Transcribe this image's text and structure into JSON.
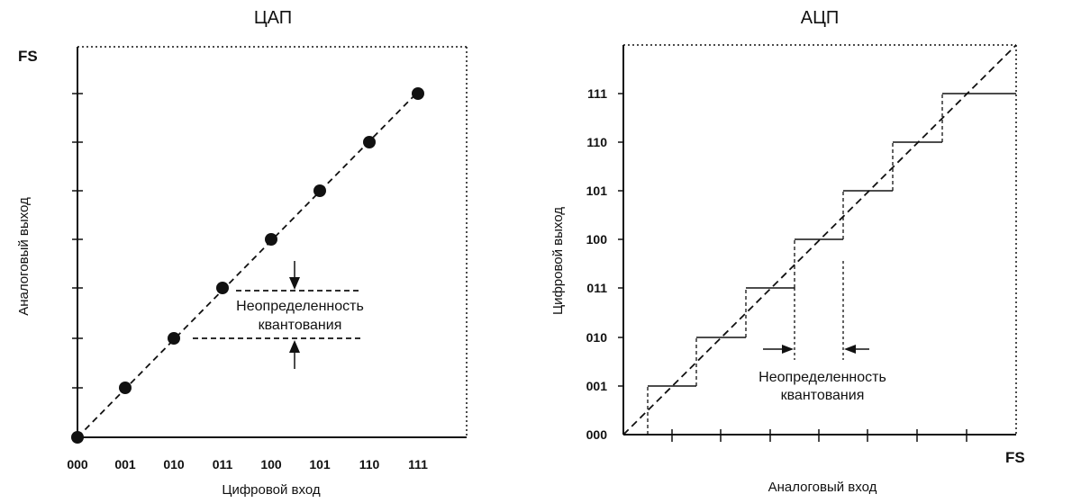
{
  "dac": {
    "title": "ЦАП",
    "fs_label": "FS",
    "x_label": "Цифровой вход",
    "y_label": "Аналоговый выход",
    "codes": [
      "000",
      "001",
      "010",
      "011",
      "100",
      "101",
      "110",
      "111"
    ],
    "annotation": [
      "Неопределенность",
      "квантования"
    ]
  },
  "adc": {
    "title": "АЦП",
    "fs_label": "FS",
    "x_label": "Аналоговый вход",
    "y_label": "Цифровой выход",
    "codes": [
      "000",
      "001",
      "010",
      "011",
      "100",
      "101",
      "110",
      "111"
    ],
    "annotation": [
      "Неопределенность",
      "квантования"
    ]
  },
  "chart_data": [
    {
      "type": "scatter",
      "title": "ЦАП",
      "xlabel": "Цифровой вход",
      "ylabel": "Аналоговый выход",
      "categories": [
        "000",
        "001",
        "010",
        "011",
        "100",
        "101",
        "110",
        "111"
      ],
      "values": [
        0,
        1,
        2,
        3,
        4,
        5,
        6,
        7
      ],
      "ylim": [
        0,
        8
      ],
      "ideal_line": "dashed diagonal through points",
      "annotation": "Неопределенность квантования"
    },
    {
      "type": "line",
      "title": "АЦП",
      "xlabel": "Аналоговый вход",
      "ylabel": "Цифровой выход",
      "categories": [
        "000",
        "001",
        "010",
        "011",
        "100",
        "101",
        "110",
        "111"
      ],
      "x": [
        0,
        1,
        2,
        3,
        4,
        5,
        6,
        7
      ],
      "values": [
        0,
        1,
        2,
        3,
        4,
        5,
        6,
        7
      ],
      "xlim": [
        0,
        8
      ],
      "ideal_line": "dashed diagonal",
      "annotation": "Неопределенность квантования"
    }
  ]
}
